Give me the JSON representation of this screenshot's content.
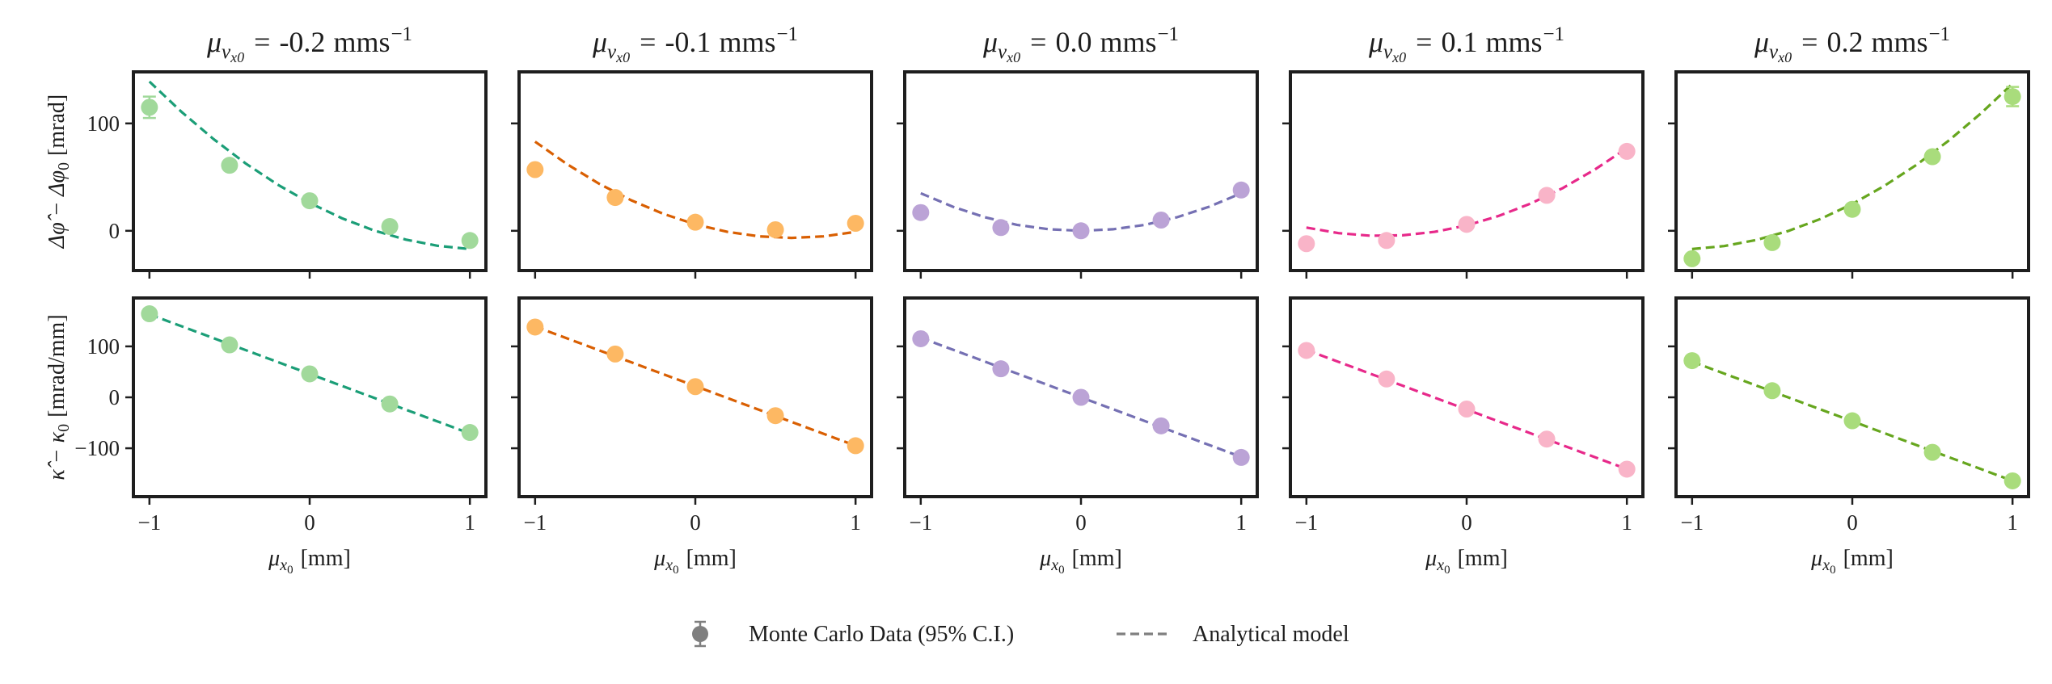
{
  "chart_data": {
    "type": "scatter",
    "x": [
      -1,
      -0.5,
      0,
      0.5,
      1
    ],
    "xlim": [
      -1.1,
      1.1
    ],
    "xticks": [
      -1,
      0,
      1
    ],
    "xtick_labels": [
      "−1",
      "0",
      "1"
    ],
    "xlabel": {
      "symbol": "μ",
      "sub": "x",
      "subsub": "0",
      "unit": "[mm]"
    },
    "rows": [
      {
        "ylabel": {
          "main": "Δφ̂ − Δφ",
          "sub": "0",
          "unit": "[mrad]"
        },
        "ylim": [
          -37,
          148
        ],
        "yticks": [
          0,
          100
        ],
        "ytick_labels": [
          "0",
          "100"
        ]
      },
      {
        "ylabel": {
          "main": "κ̂ − κ",
          "sub": "0",
          "unit": "[mrad/mm]"
        },
        "ylim": [
          -195,
          195
        ],
        "yticks": [
          -100,
          0,
          100
        ],
        "ytick_labels": [
          "−100",
          "0",
          "100"
        ]
      }
    ],
    "columns": [
      {
        "title": {
          "symbol": "μ",
          "sub": "v",
          "subsub": "x0",
          "eq": "=",
          "value": "-0.2",
          "unit": "mms",
          "exp": "−1"
        },
        "point_color": "#a1d99b",
        "line_color": "#1b9e77",
        "panels": [
          {
            "y": [
              115,
              61,
              28,
              4,
              -9
            ],
            "err": [
              10,
              2,
              2,
              2,
              2
            ],
            "model": {
              "x": [
                -1,
                -0.8,
                -0.6,
                -0.4,
                -0.2,
                0,
                0.2,
                0.4,
                0.6,
                0.8,
                1
              ],
              "y": [
                139,
                110.8,
                85.4,
                62.8,
                43,
                26,
                11.8,
                0.4,
                -8.2,
                -14,
                -17
              ]
            }
          },
          {
            "y": [
              164,
              103,
              46,
              -13,
              -69
            ],
            "err": [
              2,
              2,
              2,
              2,
              2
            ],
            "model": {
              "x": [
                -1,
                1
              ],
              "y": [
                163,
                -71
              ]
            }
          }
        ]
      },
      {
        "title": {
          "symbol": "μ",
          "sub": "v",
          "subsub": "x0",
          "eq": "=",
          "value": "-0.1",
          "unit": "mms",
          "exp": "−1"
        },
        "point_color": "#fdb863",
        "line_color": "#d95f02",
        "panels": [
          {
            "y": [
              57,
              31,
              8,
              1,
              7
            ],
            "err": [
              2,
              2,
              2,
              2,
              2
            ],
            "model": {
              "x": [
                -1,
                -0.8,
                -0.6,
                -0.4,
                -0.2,
                0,
                0.2,
                0.4,
                0.6,
                0.8,
                1
              ],
              "y": [
                83,
                62,
                43.8,
                28.4,
                15.8,
                6,
                -1,
                -5.2,
                -6.6,
                -5.2,
                -1
              ]
            }
          },
          {
            "y": [
              138,
              85,
              21,
              -36,
              -95
            ],
            "err": [
              2,
              2,
              2,
              2,
              2
            ],
            "model": {
              "x": [
                -1,
                1
              ],
              "y": [
                139,
                -95
              ]
            }
          }
        ]
      },
      {
        "title": {
          "symbol": "μ",
          "sub": "v",
          "subsub": "x0",
          "eq": "=",
          "value": "0.0",
          "unit": "mms",
          "exp": "−1"
        },
        "point_color": "#bba3d6",
        "line_color": "#7570b3",
        "panels": [
          {
            "y": [
              17,
              3,
              0,
              10,
              38
            ],
            "err": [
              2,
              2,
              2,
              2,
              2
            ],
            "model": {
              "x": [
                -1,
                -0.8,
                -0.6,
                -0.4,
                -0.2,
                0,
                0.2,
                0.4,
                0.6,
                0.8,
                1
              ],
              "y": [
                35,
                22.4,
                12.6,
                5.6,
                1.4,
                0,
                1.4,
                5.6,
                12.6,
                22.4,
                35
              ]
            }
          },
          {
            "y": [
              115,
              56,
              0,
              -56,
              -118
            ],
            "err": [
              2,
              2,
              2,
              2,
              2
            ],
            "model": {
              "x": [
                -1,
                1
              ],
              "y": [
                117,
                -117
              ]
            }
          }
        ]
      },
      {
        "title": {
          "symbol": "μ",
          "sub": "v",
          "subsub": "x0",
          "eq": "=",
          "value": "0.1",
          "unit": "mms",
          "exp": "−1"
        },
        "point_color": "#f9b4c8",
        "line_color": "#e7298a",
        "panels": [
          {
            "y": [
              -12,
              -9,
              6,
              33,
              74
            ],
            "err": [
              2,
              2,
              2,
              2,
              2
            ],
            "model": {
              "x": [
                -1,
                -0.8,
                -0.6,
                -0.4,
                -0.2,
                0,
                0.2,
                0.4,
                0.6,
                0.8,
                1
              ],
              "y": [
                3,
                -2.2,
                -4.6,
                -4.2,
                -1,
                5,
                13.8,
                25.4,
                39.8,
                57,
                77
              ]
            }
          },
          {
            "y": [
              92,
              36,
              -23,
              -82,
              -141
            ],
            "err": [
              2,
              2,
              2,
              2,
              2
            ],
            "model": {
              "x": [
                -1,
                1
              ],
              "y": [
                93,
                -141
              ]
            }
          }
        ]
      },
      {
        "title": {
          "symbol": "μ",
          "sub": "v",
          "subsub": "x0",
          "eq": "=",
          "value": "0.2",
          "unit": "mms",
          "exp": "−1"
        },
        "point_color": "#a9dc7c",
        "line_color": "#66a61e",
        "panels": [
          {
            "y": [
              -26,
              -11,
              20,
              69,
              125
            ],
            "err": [
              2,
              2,
              2,
              2,
              9
            ],
            "model": {
              "x": [
                -1,
                -0.8,
                -0.6,
                -0.4,
                -0.2,
                0,
                0.2,
                0.4,
                0.6,
                0.8,
                1
              ],
              "y": [
                -17,
                -14.2,
                -8.6,
                -0.2,
                11,
                25,
                41.8,
                61.4,
                83.8,
                109,
                137
              ]
            }
          },
          {
            "y": [
              72,
              13,
              -46,
              -108,
              -164
            ],
            "err": [
              2,
              2,
              2,
              2,
              2
            ],
            "model": {
              "x": [
                -1,
                1
              ],
              "y": [
                70,
                -164
              ]
            }
          }
        ]
      }
    ],
    "legend": {
      "position": "bottom-center",
      "items": [
        {
          "label": "Monte Carlo Data (95% C.I.)",
          "color": "#7f7f7f"
        },
        {
          "label": "Analytical model",
          "color": "#7f7f7f"
        }
      ]
    }
  }
}
